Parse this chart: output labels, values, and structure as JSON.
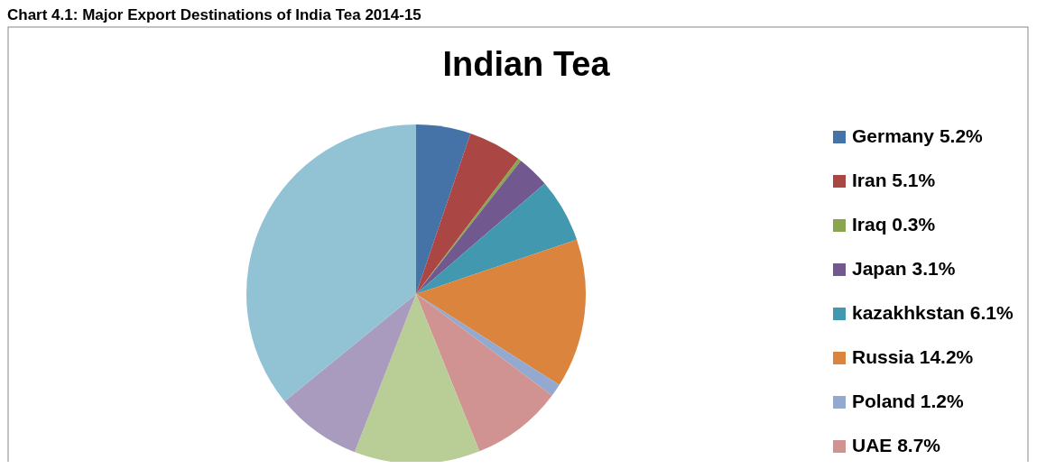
{
  "chart_data": {
    "type": "pie",
    "title": "Indian Tea",
    "subtitle": "Chart 4.1: Major Export Destinations of India Tea 2014-15",
    "categories": [
      "Germany",
      "Iran",
      "Iraq",
      "Japan",
      "kazakhkstan",
      "Russia",
      "Poland",
      "UAE",
      null,
      null,
      null
    ],
    "values": [
      5.2,
      5.1,
      0.3,
      3.1,
      6.1,
      14.2,
      1.2,
      8.7,
      12.0,
      8.2,
      35.9
    ],
    "value_labels": [
      "5.2%",
      "5.1%",
      "0.3%",
      "3.1%",
      "6.1%",
      "14.2%",
      "1.2%",
      "8.7%",
      null,
      null,
      null
    ],
    "colors": [
      "#4572a7",
      "#aa4643",
      "#89a54e",
      "#71588f",
      "#4198af",
      "#db843d",
      "#93a9cf",
      "#d19392",
      "#b9cd96",
      "#a99bbd",
      "#92c3d4"
    ],
    "legend": "right"
  }
}
